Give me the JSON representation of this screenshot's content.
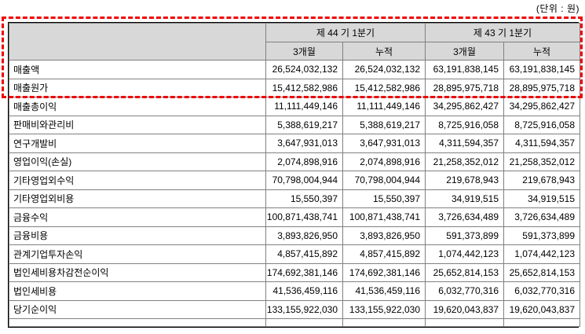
{
  "unit_label": "(단위 : 원)",
  "table": {
    "period_headers": [
      "제 44 기 1분기",
      "제 43 기 1분기"
    ],
    "sub_headers": [
      "3개월",
      "누적",
      "3개월",
      "누적"
    ],
    "rows": [
      {
        "label": "매출액",
        "values": [
          "26,524,032,132",
          "26,524,032,132",
          "63,191,838,145",
          "63,191,838,145"
        ],
        "highlighted": true
      },
      {
        "label": "매출원가",
        "values": [
          "15,412,582,986",
          "15,412,582,986",
          "28,895,975,718",
          "28,895,975,718"
        ],
        "highlighted": true
      },
      {
        "label": "매출총이익",
        "values": [
          "11,111,449,146",
          "11,111,449,146",
          "34,295,862,427",
          "34,295,862,427"
        ],
        "highlighted": false
      },
      {
        "label": "판매비와관리비",
        "values": [
          "5,388,619,217",
          "5,388,619,217",
          "8,725,916,058",
          "8,725,916,058"
        ],
        "highlighted": false
      },
      {
        "label": "연구개발비",
        "values": [
          "3,647,931,013",
          "3,647,931,013",
          "4,311,594,357",
          "4,311,594,357"
        ],
        "highlighted": false
      },
      {
        "label": "영업이익(손실)",
        "values": [
          "2,074,898,916",
          "2,074,898,916",
          "21,258,352,012",
          "21,258,352,012"
        ],
        "highlighted": false
      },
      {
        "label": "기타영업외수익",
        "values": [
          "70,798,004,944",
          "70,798,004,944",
          "219,678,943",
          "219,678,943"
        ],
        "highlighted": false
      },
      {
        "label": "기타영업외비용",
        "values": [
          "15,550,397",
          "15,550,397",
          "34,919,515",
          "34,919,515"
        ],
        "highlighted": false
      },
      {
        "label": "금융수익",
        "values": [
          "100,871,438,741",
          "100,871,438,741",
          "3,726,634,489",
          "3,726,634,489"
        ],
        "highlighted": false
      },
      {
        "label": "금융비용",
        "values": [
          "3,893,826,950",
          "3,893,826,950",
          "591,373,899",
          "591,373,899"
        ],
        "highlighted": false
      },
      {
        "label": "관계기업투자손익",
        "values": [
          "4,857,415,892",
          "4,857,415,892",
          "1,074,442,123",
          "1,074,442,123"
        ],
        "highlighted": false
      },
      {
        "label": "법인세비용차감전순이익",
        "values": [
          "174,692,381,146",
          "174,692,381,146",
          "25,652,814,153",
          "25,652,814,153"
        ],
        "highlighted": false
      },
      {
        "label": "법인세비용",
        "values": [
          "41,536,459,116",
          "41,536,459,116",
          "6,032,770,316",
          "6,032,770,316"
        ],
        "highlighted": false
      },
      {
        "label": "당기순이익",
        "values": [
          "133,155,922,030",
          "133,155,922,030",
          "19,620,043,837",
          "19,620,043,837"
        ],
        "highlighted": false
      }
    ]
  },
  "colors": {
    "highlight_border": "#f00000",
    "header_bg": "#d8d8d8",
    "grid_line": "#808080",
    "outer_border": "#000000",
    "text": "#000000"
  }
}
